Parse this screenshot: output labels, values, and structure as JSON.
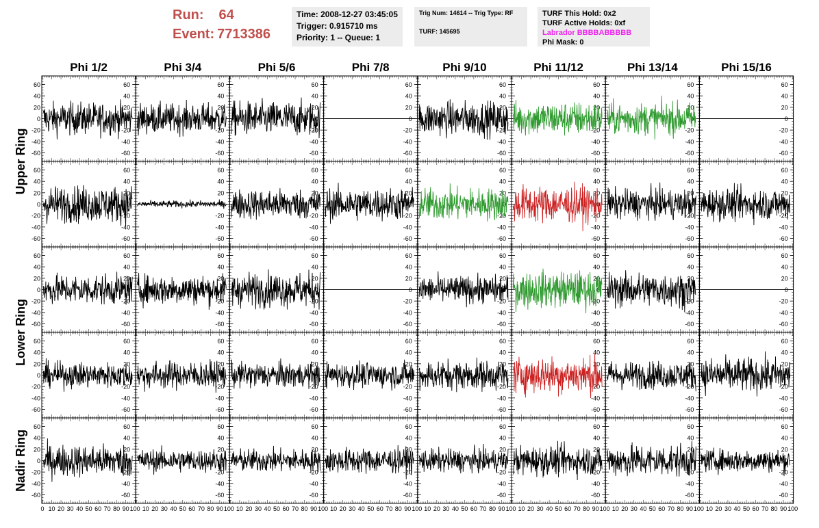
{
  "header": {
    "run_label": "Run:",
    "run_value": "64",
    "event_label": "Event:",
    "event_value": "7713386",
    "time": "Time: 2008-12-27 03:45:05",
    "trigger": "Trigger: 0.915710 ms",
    "priority": "Priority: 1 -- Queue: 1",
    "trig_num": "Trig Num: 14614 -- Trig Type: RF",
    "turf": "TURF: 145695",
    "turf_this_hold": "TURF This Hold: 0x2",
    "turf_active_holds": "TURF Active Holds: 0xf",
    "labrador": "Labrador BBBBABBBBB",
    "phi_mask": "Phi Mask: 0"
  },
  "colors": {
    "black": "#000000",
    "green": "#2e9a2e",
    "red": "#cc2222",
    "run_text": "#c0504d",
    "pink": "#ee22ee"
  },
  "chart_data": {
    "type": "line",
    "columns": [
      "Phi 1/2",
      "Phi 3/4",
      "Phi 5/6",
      "Phi 7/8",
      "Phi 9/10",
      "Phi 11/12",
      "Phi 13/14",
      "Phi 15/16"
    ],
    "row_labels": [
      "Upper Ring",
      "Lower Ring",
      "Nadir Ring"
    ],
    "ylim": [
      -75,
      75
    ],
    "yticks": [
      -60,
      -40,
      -20,
      0,
      20,
      40,
      60
    ],
    "xlim": [
      0,
      100
    ],
    "xticks": [
      0,
      10,
      20,
      30,
      40,
      50,
      60,
      70,
      80,
      90,
      100
    ],
    "grid": false,
    "panels": [
      [
        {
          "amp": 14,
          "color": "black",
          "flat": false
        },
        {
          "amp": 13,
          "color": "black",
          "flat": false
        },
        {
          "amp": 15,
          "color": "black",
          "flat": false
        },
        {
          "amp": 0,
          "color": "black",
          "flat": true
        },
        {
          "amp": 15,
          "color": "black",
          "flat": false
        },
        {
          "amp": 15,
          "color": "green",
          "flat": false
        },
        {
          "amp": 14,
          "color": "green",
          "flat": false
        },
        {
          "amp": 0,
          "color": "black",
          "flat": true
        }
      ],
      [
        {
          "amp": 16,
          "color": "black",
          "flat": false
        },
        {
          "amp": 3,
          "color": "black",
          "flat": false
        },
        {
          "amp": 13,
          "color": "black",
          "flat": false
        },
        {
          "amp": 14,
          "color": "black",
          "flat": false
        },
        {
          "amp": 14,
          "color": "green",
          "flat": false
        },
        {
          "amp": 16,
          "color": "red",
          "flat": false
        },
        {
          "amp": 13,
          "color": "black",
          "flat": false
        },
        {
          "amp": 14,
          "color": "black",
          "flat": false
        }
      ],
      [
        {
          "amp": 13,
          "color": "black",
          "flat": false
        },
        {
          "amp": 13,
          "color": "black",
          "flat": false
        },
        {
          "amp": 15,
          "color": "black",
          "flat": false
        },
        {
          "amp": 0,
          "color": "black",
          "flat": true
        },
        {
          "amp": 12,
          "color": "black",
          "flat": false
        },
        {
          "amp": 16,
          "color": "green",
          "flat": false
        },
        {
          "amp": 15,
          "color": "black",
          "flat": false
        },
        {
          "amp": 0,
          "color": "black",
          "flat": true
        }
      ],
      [
        {
          "amp": 11,
          "color": "black",
          "flat": false
        },
        {
          "amp": 12,
          "color": "black",
          "flat": false
        },
        {
          "amp": 11,
          "color": "black",
          "flat": false
        },
        {
          "amp": 11,
          "color": "black",
          "flat": false
        },
        {
          "amp": 13,
          "color": "black",
          "flat": false
        },
        {
          "amp": 16,
          "color": "red",
          "flat": false
        },
        {
          "amp": 12,
          "color": "black",
          "flat": false
        },
        {
          "amp": 15,
          "color": "black",
          "flat": false
        }
      ],
      [
        {
          "amp": 14,
          "color": "black",
          "flat": false
        },
        {
          "amp": 10,
          "color": "black",
          "flat": false
        },
        {
          "amp": 10,
          "color": "black",
          "flat": false
        },
        {
          "amp": 11,
          "color": "black",
          "flat": false
        },
        {
          "amp": 10,
          "color": "black",
          "flat": false
        },
        {
          "amp": 13,
          "color": "black",
          "flat": false
        },
        {
          "amp": 14,
          "color": "black",
          "flat": false
        },
        {
          "amp": 10,
          "color": "black",
          "flat": false
        }
      ]
    ]
  }
}
